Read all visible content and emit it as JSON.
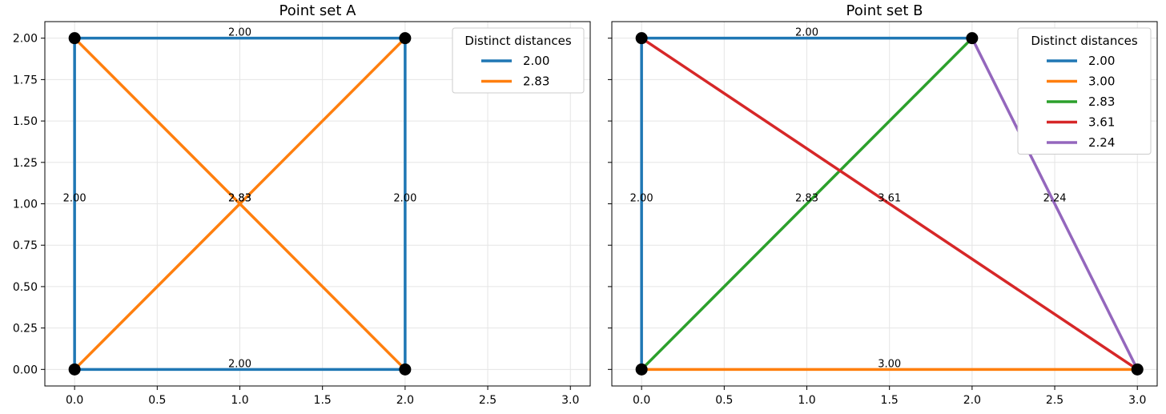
{
  "chart_data": [
    {
      "type": "line",
      "title": "Point set A",
      "xlim": [
        -0.18,
        3.12
      ],
      "ylim": [
        -0.1,
        2.1
      ],
      "x_ticks": [
        "0.0",
        "0.5",
        "1.0",
        "1.5",
        "2.0",
        "2.5",
        "3.0"
      ],
      "x_tick_values": [
        0,
        0.5,
        1,
        1.5,
        2,
        2.5,
        3
      ],
      "y_ticks": [
        "0.00",
        "0.25",
        "0.50",
        "0.75",
        "1.00",
        "1.25",
        "1.50",
        "1.75",
        "2.00"
      ],
      "y_tick_values": [
        0,
        0.25,
        0.5,
        0.75,
        1,
        1.25,
        1.5,
        1.75,
        2
      ],
      "show_y_tick_labels": true,
      "grid": true,
      "legend": {
        "title": "Distinct distances",
        "placement": "top-right",
        "entries": [
          {
            "label": "2.00",
            "color": "#1f77b4"
          },
          {
            "label": "2.83",
            "color": "#ff7f0e"
          }
        ]
      },
      "points": [
        [
          0,
          0
        ],
        [
          2,
          0
        ],
        [
          0,
          2
        ],
        [
          2,
          2
        ]
      ],
      "edges": [
        {
          "from": [
            0,
            2
          ],
          "to": [
            2,
            2
          ],
          "distance": "2.00",
          "color": "#1f77b4"
        },
        {
          "from": [
            0,
            0
          ],
          "to": [
            2,
            0
          ],
          "distance": "2.00",
          "color": "#1f77b4"
        },
        {
          "from": [
            0,
            0
          ],
          "to": [
            0,
            2
          ],
          "distance": "2.00",
          "color": "#1f77b4"
        },
        {
          "from": [
            2,
            0
          ],
          "to": [
            2,
            2
          ],
          "distance": "2.00",
          "color": "#1f77b4"
        },
        {
          "from": [
            0,
            0
          ],
          "to": [
            2,
            2
          ],
          "distance": "2.83",
          "color": "#ff7f0e"
        },
        {
          "from": [
            0,
            2
          ],
          "to": [
            2,
            0
          ],
          "distance": "2.83",
          "color": "#ff7f0e"
        }
      ]
    },
    {
      "type": "line",
      "title": "Point set B",
      "xlim": [
        -0.18,
        3.12
      ],
      "ylim": [
        -0.1,
        2.1
      ],
      "x_ticks": [
        "0.0",
        "0.5",
        "1.0",
        "1.5",
        "2.0",
        "2.5",
        "3.0"
      ],
      "x_tick_values": [
        0,
        0.5,
        1,
        1.5,
        2,
        2.5,
        3
      ],
      "y_ticks": [
        "0.00",
        "0.25",
        "0.50",
        "0.75",
        "1.00",
        "1.25",
        "1.50",
        "1.75",
        "2.00"
      ],
      "y_tick_values": [
        0,
        0.25,
        0.5,
        0.75,
        1,
        1.25,
        1.5,
        1.75,
        2
      ],
      "show_y_tick_labels": false,
      "grid": true,
      "legend": {
        "title": "Distinct distances",
        "placement": "top-right",
        "entries": [
          {
            "label": "2.00",
            "color": "#1f77b4"
          },
          {
            "label": "3.00",
            "color": "#ff7f0e"
          },
          {
            "label": "2.83",
            "color": "#2ca02c"
          },
          {
            "label": "3.61",
            "color": "#d62728"
          },
          {
            "label": "2.24",
            "color": "#9467bd"
          }
        ]
      },
      "points": [
        [
          0,
          0
        ],
        [
          3,
          0
        ],
        [
          0,
          2
        ],
        [
          2,
          2
        ]
      ],
      "edges": [
        {
          "from": [
            0,
            2
          ],
          "to": [
            2,
            2
          ],
          "distance": "2.00",
          "color": "#1f77b4"
        },
        {
          "from": [
            0,
            0
          ],
          "to": [
            0,
            2
          ],
          "distance": "2.00",
          "color": "#1f77b4"
        },
        {
          "from": [
            0,
            0
          ],
          "to": [
            3,
            0
          ],
          "distance": "3.00",
          "color": "#ff7f0e"
        },
        {
          "from": [
            0,
            0
          ],
          "to": [
            2,
            2
          ],
          "distance": "2.83",
          "color": "#2ca02c"
        },
        {
          "from": [
            0,
            2
          ],
          "to": [
            3,
            0
          ],
          "distance": "3.61",
          "color": "#d62728"
        },
        {
          "from": [
            2,
            2
          ],
          "to": [
            3,
            0
          ],
          "distance": "2.24",
          "color": "#9467bd"
        }
      ]
    }
  ]
}
